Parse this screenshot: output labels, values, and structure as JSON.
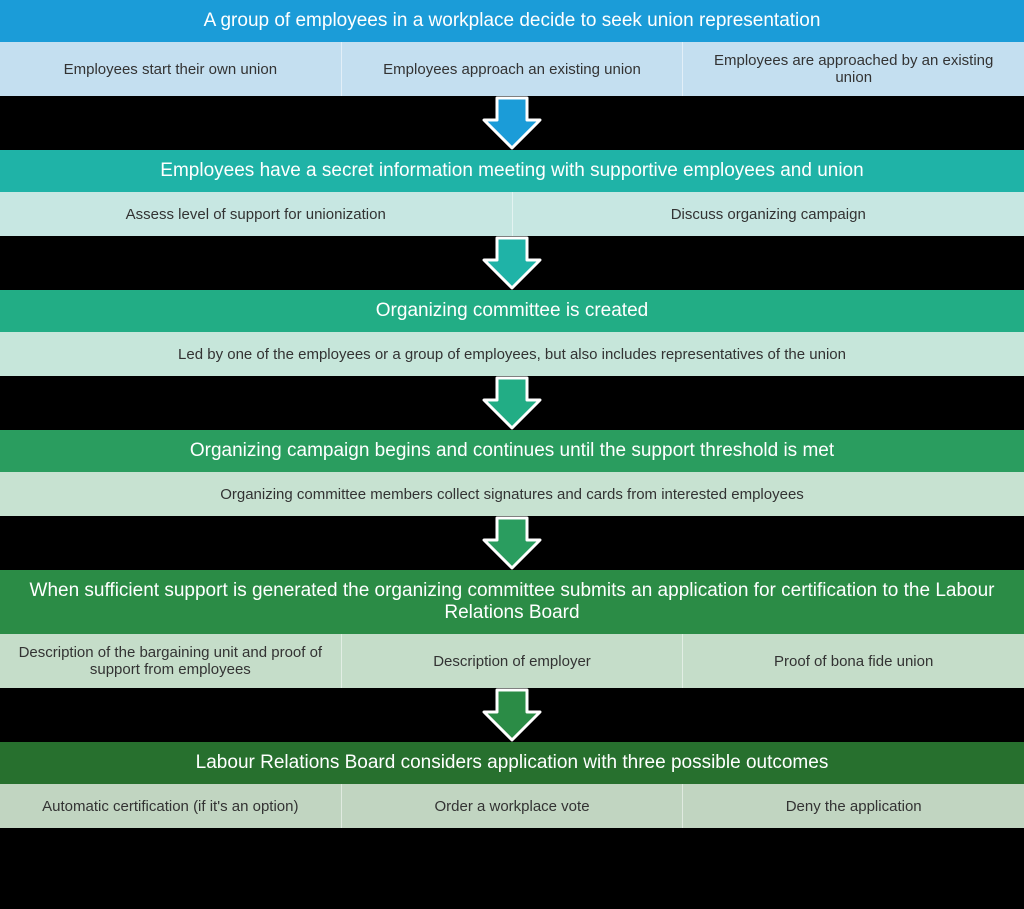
{
  "flowchart": {
    "type": "flowchart",
    "background_color": "#000000",
    "arrow_outline_color": "#ffffff",
    "arrow_outline_width": 3,
    "header_text_color": "#ffffff",
    "sub_text_color": "#333333",
    "header_fontsize": 19,
    "sub_fontsize": 15,
    "steps": [
      {
        "header": "A group of employees in a workplace decide to seek union representation",
        "header_bg": "#1b9cd8",
        "sub_bg": "#c4dff0",
        "arrow_color": "#1b9cd8",
        "subs": [
          "Employees start their own union",
          "Employees approach an existing union",
          "Employees are approached by an existing union"
        ]
      },
      {
        "header": "Employees have a secret information meeting with supportive employees and union",
        "header_bg": "#1fb3a7",
        "sub_bg": "#c7e7e2",
        "arrow_color": "#1fb3a7",
        "subs": [
          "Assess level of support for unionization",
          "Discuss organizing campaign"
        ]
      },
      {
        "header": "Organizing committee is created",
        "header_bg": "#22ad85",
        "sub_bg": "#c6e6da",
        "arrow_color": "#22ad85",
        "subs": [
          "Led by one of the employees or a group of employees, but also includes representatives of the union"
        ]
      },
      {
        "header": "Organizing campaign begins and continues until the support threshold is met",
        "header_bg": "#2a9d5f",
        "sub_bg": "#c7e2d1",
        "arrow_color": "#2a9d5f",
        "subs": [
          "Organizing committee members collect signatures and cards from interested employees"
        ]
      },
      {
        "header": "When sufficient support is generated the organizing committee submits an application for certification to the  Labour Relations Board",
        "header_bg": "#2b8c46",
        "sub_bg": "#c5ddc9",
        "arrow_color": "#2b8c46",
        "subs": [
          "Description of the bargaining unit and proof of support from employees",
          "Description of employer",
          "Proof of bona fide union"
        ]
      },
      {
        "header": "Labour Relations Board considers application with three possible outcomes",
        "header_bg": "#27702e",
        "sub_bg": "#c1d5c1",
        "arrow_color": "#27702e",
        "subs": [
          "Automatic certification (if it's an option)",
          "Order a workplace vote",
          "Deny the application"
        ]
      }
    ]
  }
}
